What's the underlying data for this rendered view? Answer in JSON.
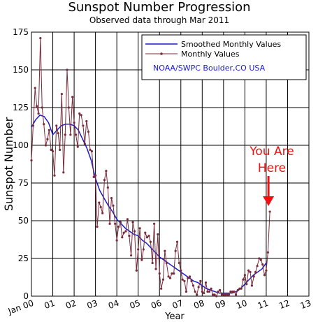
{
  "chart_data": {
    "type": "line",
    "title": "Sunspot Number Progression",
    "subtitle": "Observed data through Mar 2011",
    "xlabel": "Year",
    "ylabel": "Sunspot Number",
    "xlim": [
      2000,
      2013
    ],
    "ylim": [
      0,
      175
    ],
    "grid": true,
    "legend_position": "top-right",
    "x_tick_labels": [
      "Jan 00",
      "01",
      "02",
      "03",
      "04",
      "05",
      "06",
      "07",
      "08",
      "09",
      "10",
      "11",
      "12",
      "13"
    ],
    "y_tick_labels": [
      "0",
      "25",
      "50",
      "75",
      "100",
      "125",
      "150",
      "175"
    ],
    "source_note": "NOAA/SWPC Boulder,CO USA",
    "colors": {
      "smoothed": "#1a1acc",
      "monthly": "#7a2a3a",
      "annotation": "#ee1111"
    },
    "series": [
      {
        "name": "Smoothed Monthly Values",
        "x": [
          2000.0,
          2000.2,
          2000.4,
          2000.6,
          2000.8,
          2001.0,
          2001.2,
          2001.4,
          2001.6,
          2001.8,
          2002.0,
          2002.2,
          2002.4,
          2002.6,
          2002.8,
          2003.0,
          2003.2,
          2003.4,
          2003.6,
          2003.8,
          2004.0,
          2004.2,
          2004.4,
          2004.6,
          2004.8,
          2005.0,
          2005.2,
          2005.4,
          2005.6,
          2005.8,
          2006.0,
          2006.2,
          2006.4,
          2006.6,
          2006.8,
          2007.0,
          2007.2,
          2007.4,
          2007.6,
          2007.8,
          2008.0,
          2008.2,
          2008.4,
          2008.6,
          2008.8,
          2009.0,
          2009.2,
          2009.4,
          2009.6,
          2009.8,
          2010.0,
          2010.2,
          2010.4,
          2010.6,
          2010.8,
          2011.0
        ],
        "values": [
          112,
          117,
          120,
          119,
          115,
          107,
          110,
          113,
          114,
          114,
          113,
          110,
          104,
          98,
          90,
          78,
          70,
          65,
          60,
          56,
          51,
          48,
          45,
          43,
          41,
          40,
          37,
          35,
          32,
          29,
          26,
          24,
          22,
          20,
          18,
          16,
          14,
          12,
          10,
          9,
          7,
          5,
          4,
          3,
          2,
          2,
          2,
          2,
          3,
          5,
          8,
          11,
          14,
          16,
          18,
          22
        ]
      },
      {
        "name": "Monthly Values",
        "x": [
          2000.0,
          2000.08,
          2000.17,
          2000.25,
          2000.33,
          2000.42,
          2000.5,
          2000.58,
          2000.67,
          2000.75,
          2000.83,
          2000.92,
          2001.0,
          2001.08,
          2001.17,
          2001.25,
          2001.33,
          2001.42,
          2001.5,
          2001.58,
          2001.67,
          2001.75,
          2001.83,
          2001.92,
          2002.0,
          2002.08,
          2002.17,
          2002.25,
          2002.33,
          2002.42,
          2002.5,
          2002.58,
          2002.67,
          2002.75,
          2002.83,
          2002.92,
          2003.0,
          2003.08,
          2003.17,
          2003.25,
          2003.33,
          2003.42,
          2003.5,
          2003.58,
          2003.67,
          2003.75,
          2003.83,
          2003.92,
          2004.0,
          2004.08,
          2004.17,
          2004.25,
          2004.33,
          2004.42,
          2004.5,
          2004.58,
          2004.67,
          2004.75,
          2004.83,
          2004.92,
          2005.0,
          2005.08,
          2005.17,
          2005.25,
          2005.33,
          2005.42,
          2005.5,
          2005.58,
          2005.67,
          2005.75,
          2005.83,
          2005.92,
          2006.0,
          2006.08,
          2006.17,
          2006.25,
          2006.33,
          2006.42,
          2006.5,
          2006.58,
          2006.67,
          2006.75,
          2006.83,
          2006.92,
          2007.0,
          2007.08,
          2007.17,
          2007.25,
          2007.33,
          2007.42,
          2007.5,
          2007.58,
          2007.67,
          2007.75,
          2007.83,
          2007.92,
          2008.0,
          2008.08,
          2008.17,
          2008.25,
          2008.33,
          2008.42,
          2008.5,
          2008.58,
          2008.67,
          2008.75,
          2008.83,
          2008.92,
          2009.0,
          2009.08,
          2009.17,
          2009.25,
          2009.33,
          2009.42,
          2009.5,
          2009.58,
          2009.67,
          2009.75,
          2009.83,
          2009.92,
          2010.0,
          2010.08,
          2010.17,
          2010.25,
          2010.33,
          2010.42,
          2010.5,
          2010.58,
          2010.67,
          2010.75,
          2010.83,
          2010.92,
          2011.0,
          2011.08,
          2011.17
        ],
        "values": [
          90,
          113,
          138,
          126,
          121,
          171,
          125,
          114,
          100,
          104,
          110,
          97,
          96,
          80,
          113,
          108,
          97,
          134,
          82,
          107,
          150,
          125,
          107,
          132,
          115,
          107,
          99,
          121,
          120,
          113,
          101,
          116,
          109,
          97,
          96,
          79,
          80,
          46,
          62,
          59,
          55,
          77,
          83,
          72,
          48,
          65,
          60,
          48,
          37,
          46,
          49,
          39,
          42,
          43,
          51,
          40,
          27,
          49,
          43,
          17,
          31,
          45,
          24,
          31,
          42,
          39,
          40,
          36,
          22,
          48,
          18,
          41,
          15,
          5,
          11,
          30,
          22,
          13,
          12,
          15,
          15,
          30,
          36,
          22,
          17,
          11,
          10,
          3,
          12,
          13,
          10,
          7,
          3,
          1,
          6,
          10,
          3,
          2,
          9,
          3,
          3,
          5,
          1,
          1,
          0,
          3,
          4,
          1,
          1,
          1,
          1,
          1,
          3,
          3,
          3,
          1,
          4,
          5,
          5,
          11,
          14,
          8,
          17,
          16,
          7,
          13,
          16,
          20,
          25,
          24,
          21,
          14,
          17,
          29,
          56
        ]
      }
    ],
    "annotations": [
      {
        "text_lines": [
          "You Are",
          "Here"
        ],
        "points_to_x": 2011.17,
        "points_to_y": 56
      }
    ]
  }
}
